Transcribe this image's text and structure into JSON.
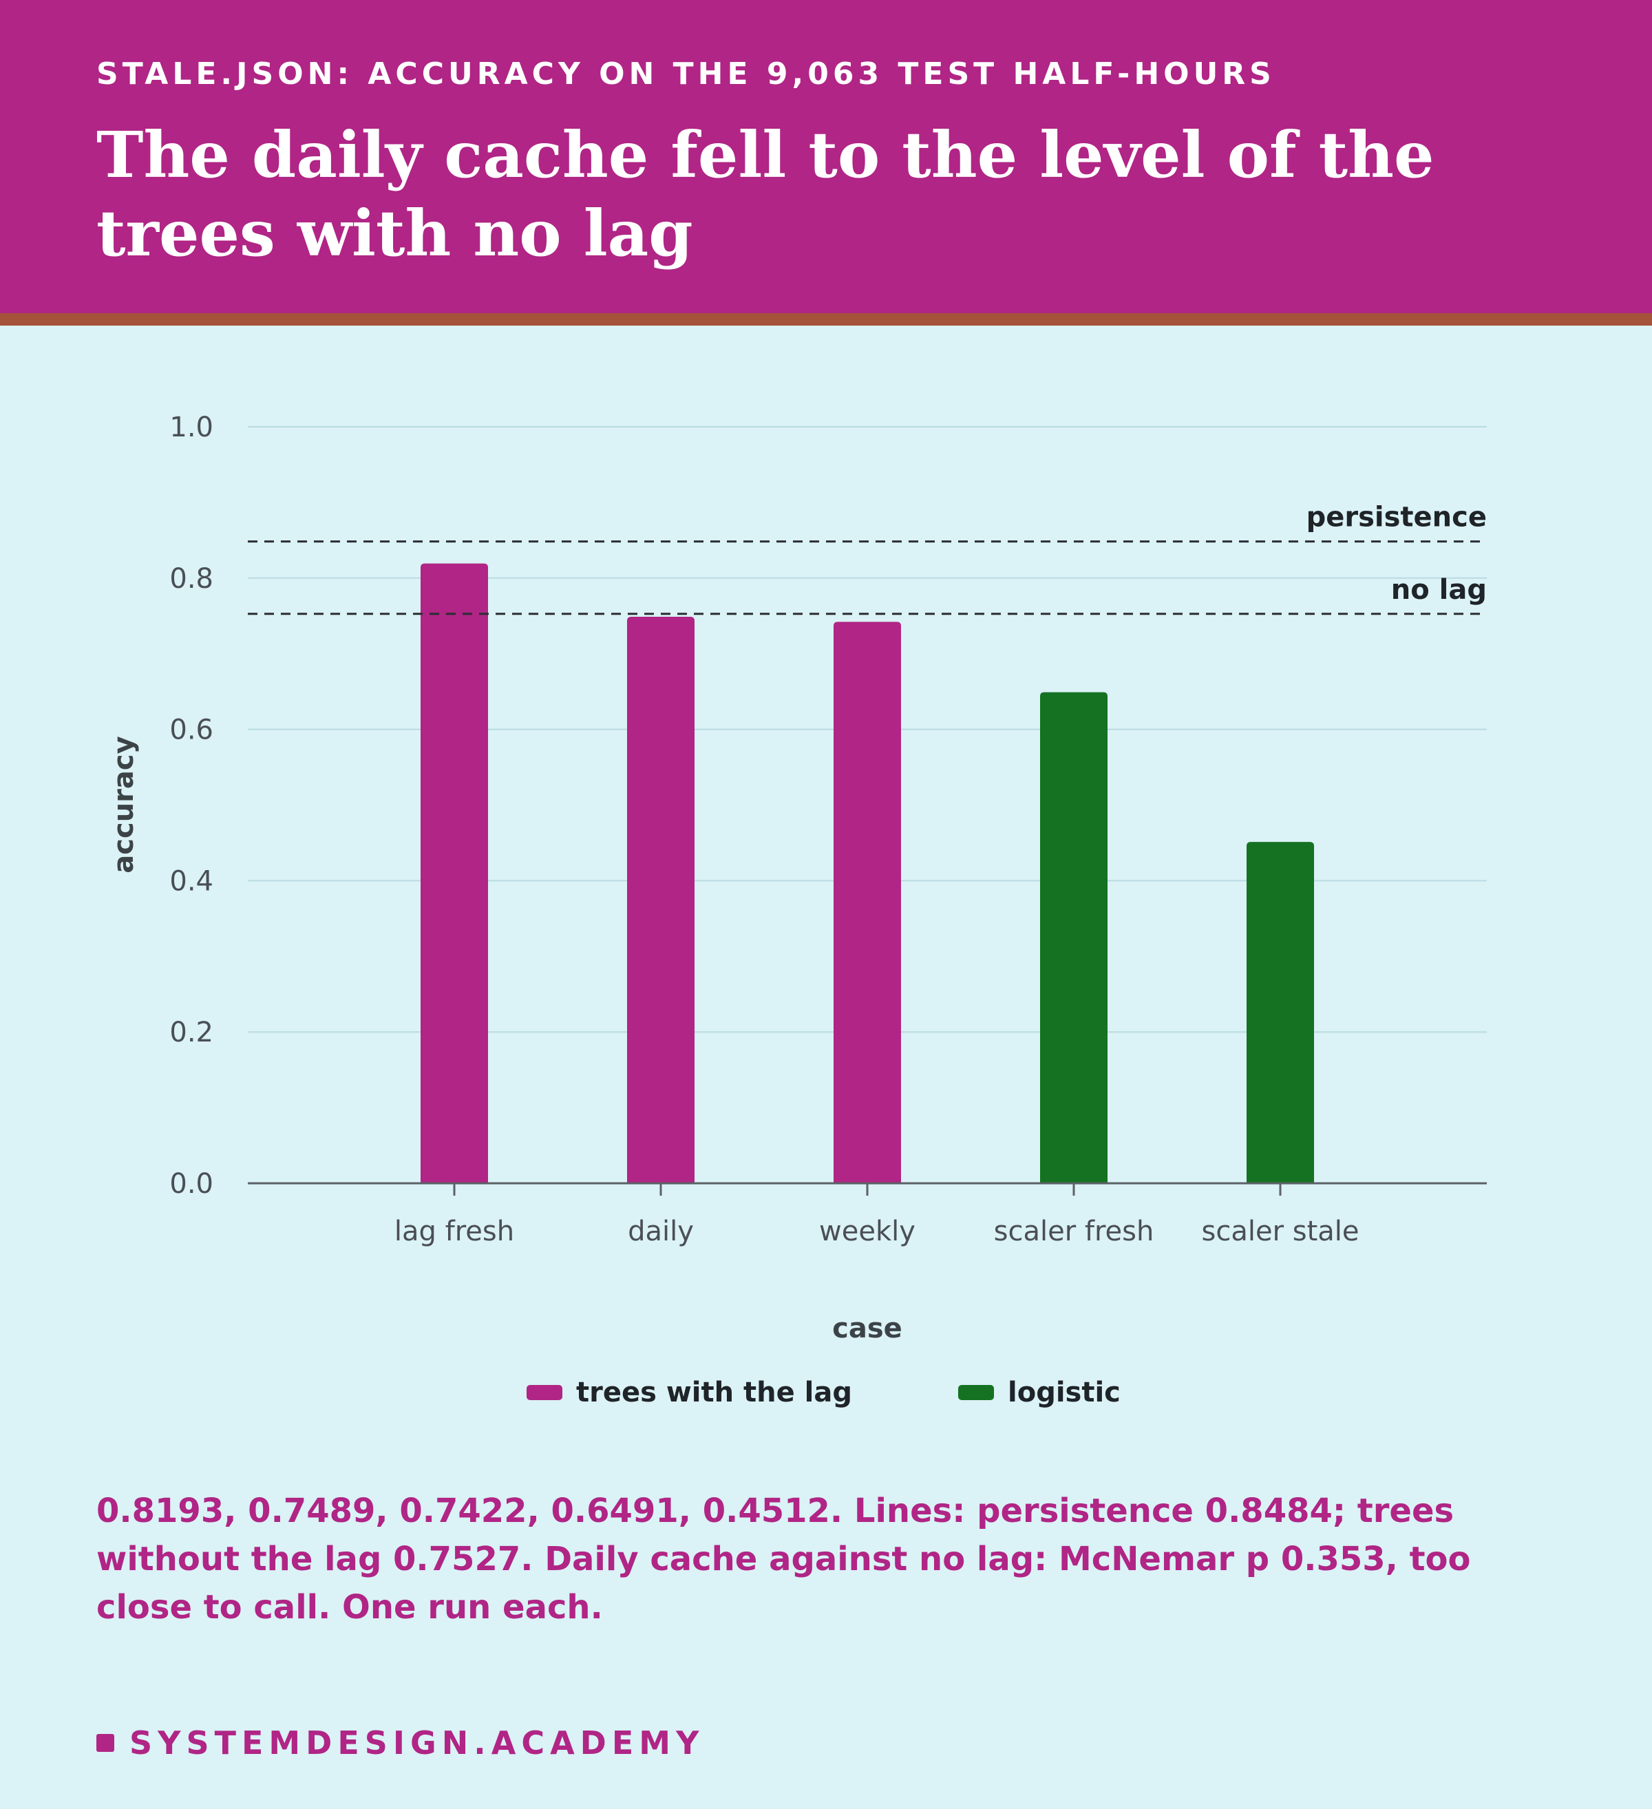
{
  "header": {
    "kicker": "STALE.JSON: ACCURACY ON THE 9,063 TEST HALF-HOURS",
    "headline": "The daily cache fell to the level of the trees with no lag"
  },
  "chart_data": {
    "type": "bar",
    "categories": [
      "lag fresh",
      "daily",
      "weekly",
      "scaler fresh",
      "scaler stale"
    ],
    "series": [
      {
        "name": "trees with the lag",
        "color": "#b02585",
        "values": [
          0.8193,
          0.7489,
          0.7422,
          null,
          null
        ]
      },
      {
        "name": "logistic",
        "color": "#157222",
        "values": [
          null,
          null,
          null,
          0.6491,
          0.4512
        ]
      }
    ],
    "reference_lines": [
      {
        "label": "persistence",
        "value": 0.8484
      },
      {
        "label": "no lag",
        "value": 0.7527
      }
    ],
    "xlabel": "case",
    "ylabel": "accuracy",
    "ylim": [
      0,
      1.0
    ],
    "yticks": [
      "0.0",
      "0.2",
      "0.4",
      "0.6",
      "0.8",
      "1.0"
    ],
    "grid": true,
    "legend_position": "bottom"
  },
  "caption": "0.8193, 0.7489, 0.7422, 0.6491, 0.4512. Lines: persistence 0.8484; trees without the lag 0.7527. Daily cache against no lag: McNemar p 0.353, too close to call. One run each.",
  "brand": {
    "name": "SYSTEMDESIGN.ACADEMY",
    "color": "#b02585"
  }
}
